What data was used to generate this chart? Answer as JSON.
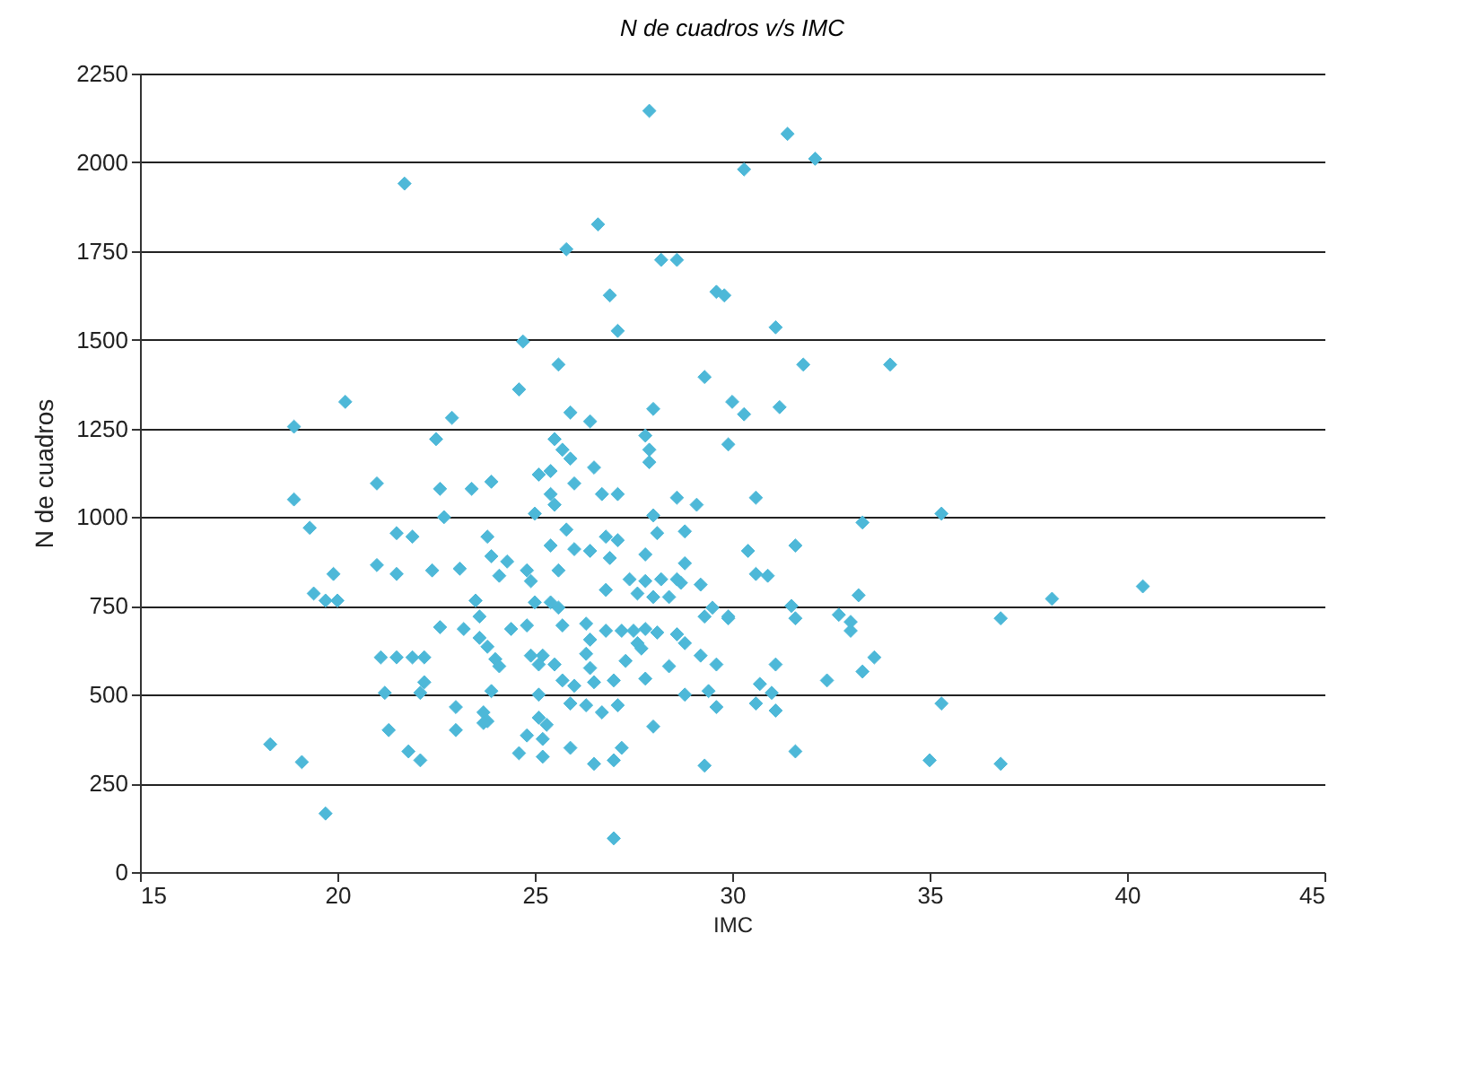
{
  "chart_data": {
    "type": "scatter",
    "title": "N de cuadros v/s IMC",
    "xlabel": "IMC",
    "ylabel": "N de cuadros",
    "xlim": [
      15,
      45
    ],
    "xticks": [
      15,
      20,
      25,
      30,
      35,
      40,
      45
    ],
    "ylim": [
      0,
      2250
    ],
    "yticks": [
      0,
      250,
      500,
      750,
      1000,
      1250,
      1500,
      1750,
      2000,
      2250
    ],
    "grid": "y",
    "marker": "diamond",
    "series": [
      {
        "color": "#4db8d8",
        "x": [
          31.4,
          30.3,
          32.1,
          29.8,
          31.1,
          31.8,
          34.0,
          30.0,
          30.3,
          31.2,
          29.9,
          30.6,
          33.3,
          35.3,
          30.4,
          31.6,
          30.6,
          30.9,
          40.4,
          38.1,
          36.8,
          33.2,
          31.5,
          31.6,
          32.7,
          33.0,
          33.0,
          29.9,
          31.1,
          33.6,
          33.3,
          32.4,
          30.7,
          31.0,
          30.6,
          31.1,
          35.3,
          31.6,
          35.0,
          36.8,
          27.9,
          26.6,
          25.8,
          28.2,
          28.6,
          26.9,
          29.6,
          27.1,
          24.7,
          25.6,
          24.6,
          29.3,
          25.9,
          26.4,
          28.0,
          25.5,
          25.7,
          25.9,
          27.8,
          27.9,
          27.9,
          25.1,
          25.4,
          26.5,
          26.0,
          25.4,
          25.5,
          26.7,
          27.1,
          28.6,
          29.1,
          25.0,
          28.0,
          28.1,
          25.8,
          28.8,
          25.4,
          26.0,
          26.4,
          26.8,
          27.1,
          26.9,
          25.6,
          27.8,
          28.8,
          24.8,
          24.9,
          27.4,
          27.8,
          28.2,
          28.6,
          26.8,
          28.7,
          29.2,
          25.0,
          25.4,
          25.6,
          27.6,
          28.0,
          28.4,
          29.3,
          29.5,
          29.9,
          24.8,
          25.7,
          26.3,
          26.8,
          27.2,
          27.5,
          27.8,
          28.1,
          28.6,
          28.8,
          27.6,
          27.7,
          24.9,
          25.2,
          26.4,
          26.3,
          29.2,
          29.6,
          25.1,
          25.5,
          27.3,
          28.4,
          26.4,
          26.5,
          27.0,
          25.7,
          26.0,
          27.8,
          25.1,
          28.8,
          29.4,
          25.9,
          26.3,
          26.7,
          27.1,
          29.6,
          25.1,
          25.3,
          24.8,
          25.2,
          25.9,
          27.2,
          28.0,
          25.2,
          26.5,
          27.0,
          29.3,
          27.0,
          21.7,
          20.2,
          18.9,
          22.9,
          22.5,
          21.0,
          22.6,
          23.4,
          23.9,
          18.9,
          22.7,
          19.3,
          21.5,
          21.9,
          23.8,
          23.9,
          24.3,
          24.1,
          21.0,
          21.5,
          22.4,
          23.1,
          19.9,
          23.5,
          23.6,
          19.4,
          19.7,
          20.0,
          22.6,
          23.2,
          23.6,
          23.8,
          24.0,
          24.1,
          24.4,
          21.1,
          21.5,
          21.9,
          22.2,
          21.2,
          22.2,
          22.1,
          23.9,
          23.0,
          23.7,
          23.8,
          23.7,
          21.3,
          23.0,
          21.8,
          22.1,
          24.6,
          18.3,
          19.1,
          19.7
        ],
        "values": [
          2080,
          1980,
          2010,
          1625,
          1535,
          1430,
          1430,
          1325,
          1290,
          1310,
          1205,
          1055,
          985,
          1010,
          905,
          920,
          840,
          835,
          805,
          770,
          715,
          780,
          750,
          715,
          725,
          705,
          680,
          715,
          585,
          605,
          565,
          540,
          530,
          505,
          475,
          455,
          475,
          340,
          315,
          305,
          2145,
          1825,
          1755,
          1725,
          1725,
          1625,
          1635,
          1525,
          1495,
          1430,
          1360,
          1395,
          1295,
          1270,
          1305,
          1220,
          1190,
          1165,
          1230,
          1190,
          1155,
          1120,
          1130,
          1140,
          1095,
          1065,
          1035,
          1065,
          1065,
          1055,
          1035,
          1010,
          1005,
          955,
          965,
          960,
          920,
          910,
          905,
          945,
          935,
          885,
          850,
          895,
          870,
          850,
          820,
          825,
          820,
          825,
          825,
          795,
          815,
          810,
          760,
          760,
          745,
          785,
          775,
          775,
          720,
          745,
          720,
          695,
          695,
          700,
          680,
          680,
          680,
          685,
          675,
          670,
          645,
          645,
          630,
          610,
          610,
          655,
          615,
          610,
          585,
          585,
          585,
          595,
          580,
          575,
          535,
          540,
          540,
          525,
          545,
          500,
          500,
          510,
          475,
          470,
          450,
          470,
          465,
          435,
          415,
          385,
          375,
          350,
          350,
          410,
          325,
          305,
          315,
          300,
          95,
          1940,
          1325,
          1255,
          1280,
          1220,
          1095,
          1080,
          1080,
          1100,
          1050,
          1000,
          970,
          955,
          945,
          945,
          890,
          875,
          835,
          865,
          840,
          850,
          855,
          840,
          765,
          720,
          785,
          765,
          765,
          690,
          685,
          660,
          635,
          600,
          580,
          685,
          605,
          605,
          605,
          605,
          505,
          535,
          505,
          510,
          465,
          450,
          425,
          420,
          400,
          400,
          340,
          315,
          335,
          360,
          310,
          165
        ]
      }
    ]
  }
}
